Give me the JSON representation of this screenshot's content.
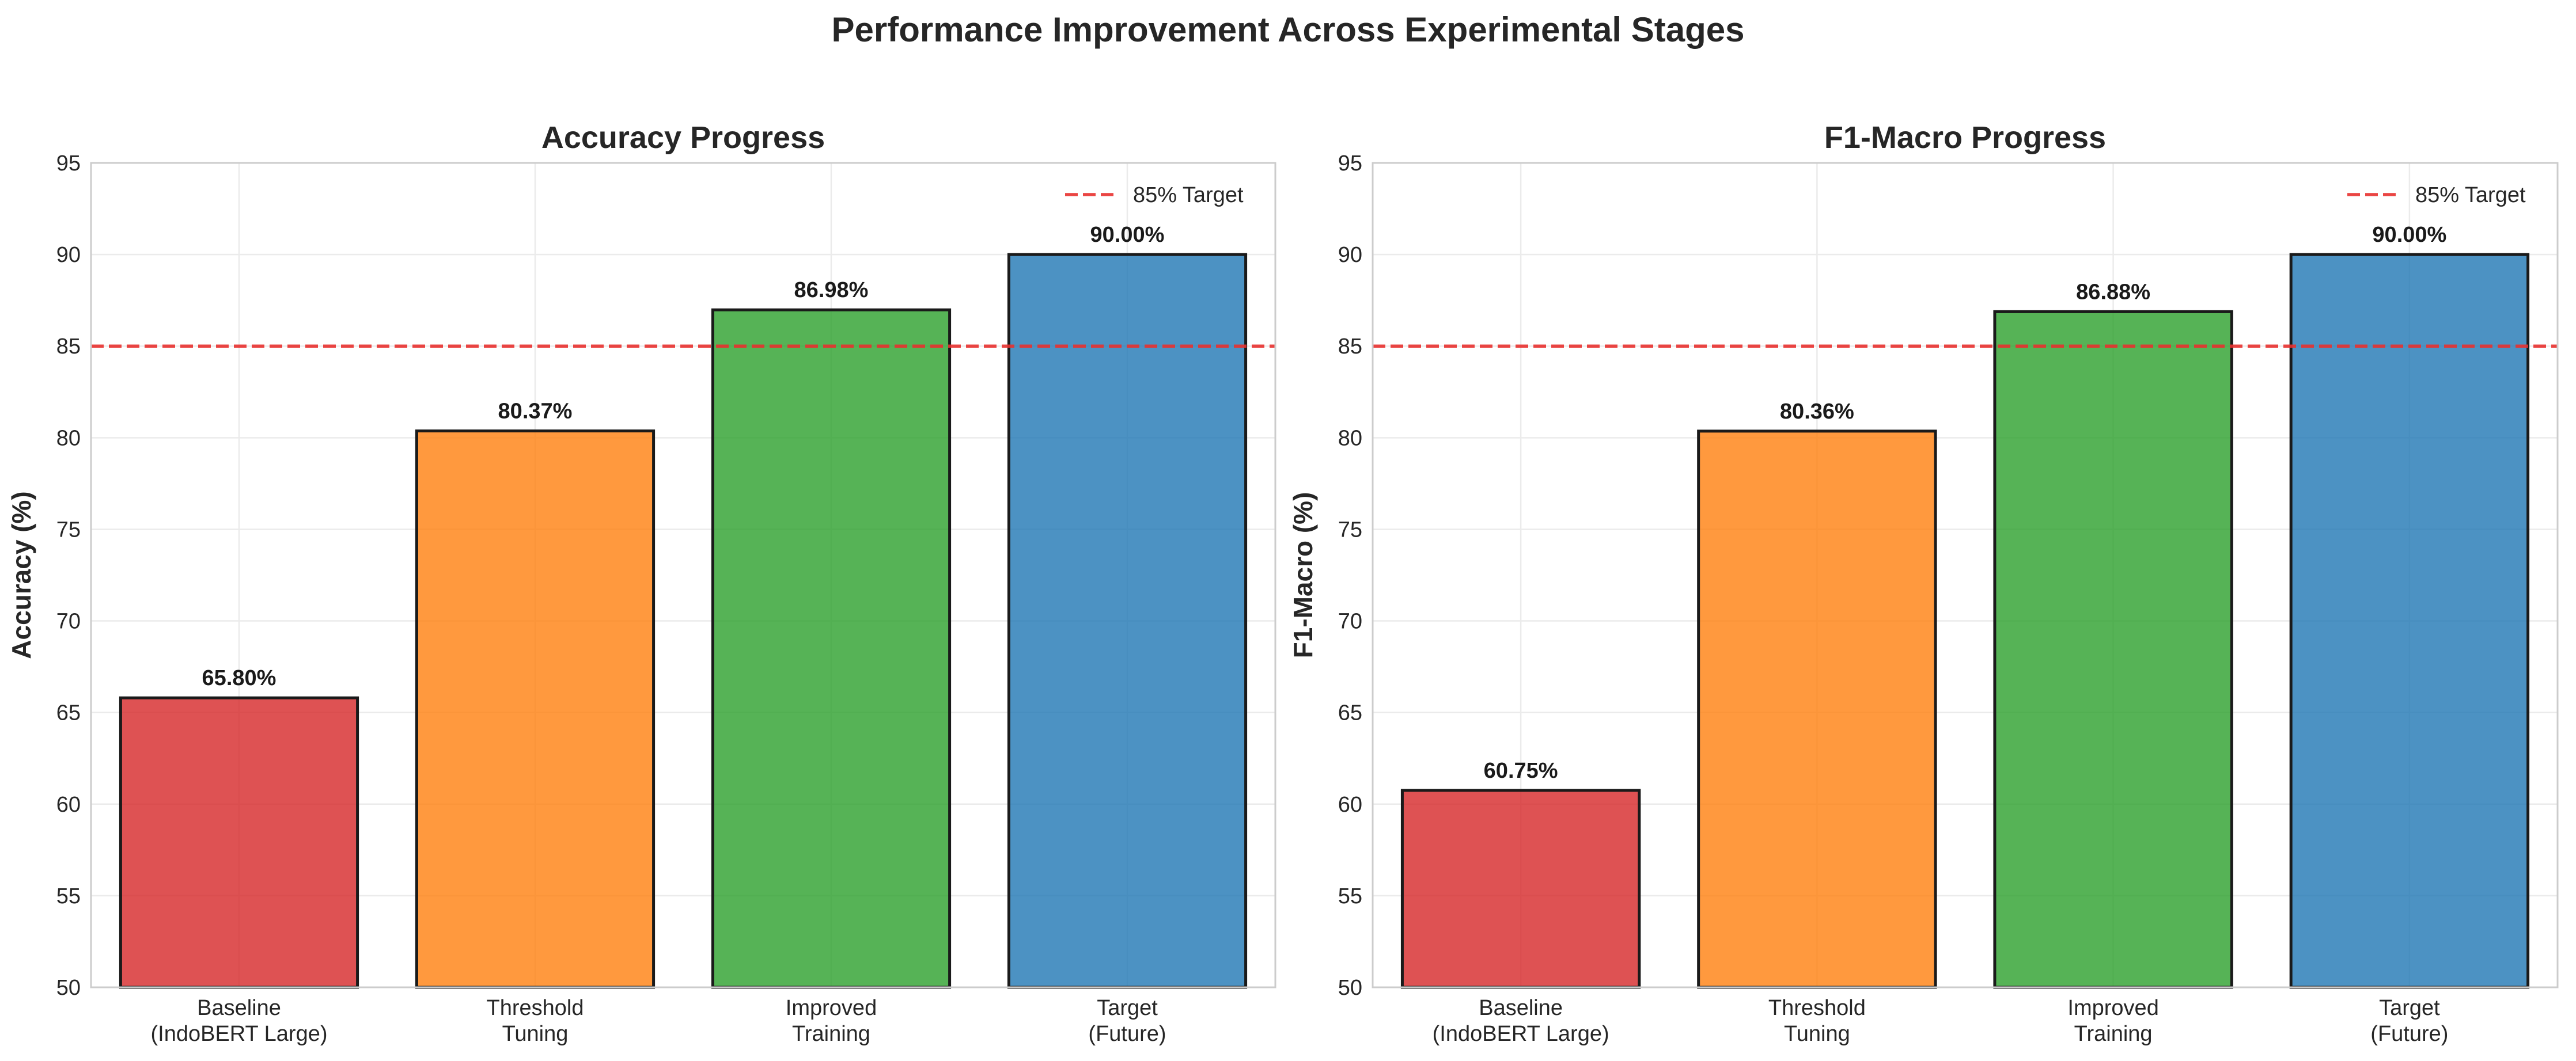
{
  "figure": {
    "title": "Performance Improvement Across Experimental Stages"
  },
  "chart_data": [
    {
      "type": "bar",
      "title": "Accuracy Progress",
      "xlabel": "",
      "ylabel": "Accuracy (%)",
      "ylim": [
        50,
        95
      ],
      "yticks": [
        50,
        55,
        60,
        65,
        70,
        75,
        80,
        85,
        90,
        95
      ],
      "grid": true,
      "legend_position": "top-right",
      "categories": [
        [
          "Baseline",
          "(IndoBERT Large)"
        ],
        [
          "Threshold",
          "Tuning"
        ],
        [
          "Improved",
          "Training"
        ],
        [
          "Target",
          "(Future)"
        ]
      ],
      "values": [
        65.8,
        80.37,
        86.98,
        90.0
      ],
      "value_labels": [
        "65.80%",
        "80.37%",
        "86.98%",
        "90.00%"
      ],
      "bar_colors": [
        "#d62728",
        "#ff7f0e",
        "#2ca02c",
        "#1f77b4"
      ],
      "reference_line": {
        "y": 85,
        "label": "85% Target",
        "color": "#e8312f",
        "style": "dashed"
      }
    },
    {
      "type": "bar",
      "title": "F1-Macro Progress",
      "xlabel": "",
      "ylabel": "F1-Macro (%)",
      "ylim": [
        50,
        95
      ],
      "yticks": [
        50,
        55,
        60,
        65,
        70,
        75,
        80,
        85,
        90,
        95
      ],
      "grid": true,
      "legend_position": "top-right",
      "categories": [
        [
          "Baseline",
          "(IndoBERT Large)"
        ],
        [
          "Threshold",
          "Tuning"
        ],
        [
          "Improved",
          "Training"
        ],
        [
          "Target",
          "(Future)"
        ]
      ],
      "values": [
        60.75,
        80.36,
        86.88,
        90.0
      ],
      "value_labels": [
        "60.75%",
        "80.36%",
        "86.88%",
        "90.00%"
      ],
      "bar_colors": [
        "#d62728",
        "#ff7f0e",
        "#2ca02c",
        "#1f77b4"
      ],
      "reference_line": {
        "y": 85,
        "label": "85% Target",
        "color": "#e8312f",
        "style": "dashed"
      }
    }
  ]
}
